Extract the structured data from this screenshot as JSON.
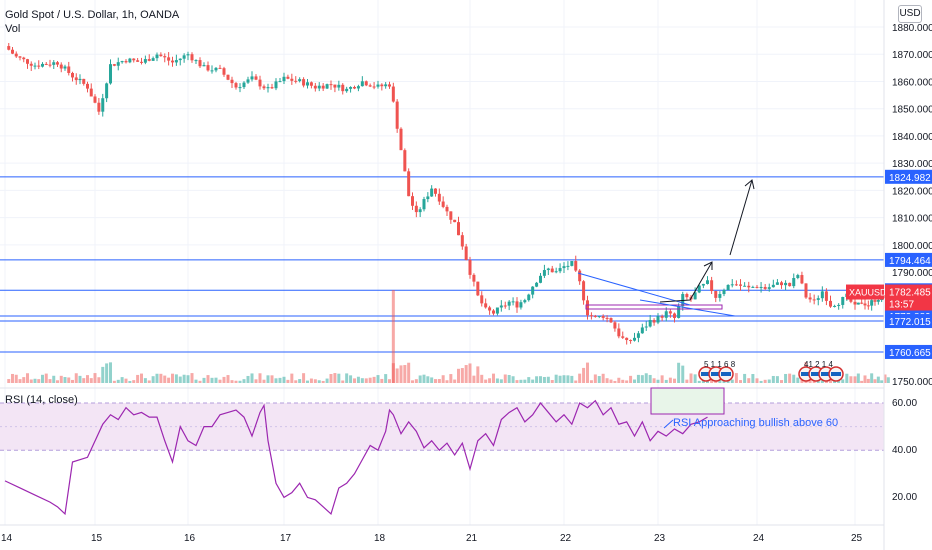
{
  "header": {
    "title": "Gold Spot / U.S. Dollar, 1h, OANDA",
    "volume_label": "Vol",
    "currency_button": "USD"
  },
  "colors": {
    "up": "#26a69a",
    "down": "#ef5350",
    "hline": "#2962ff",
    "rsi_line": "#9c27b0",
    "rsi_band": "#f3e5f5",
    "label_bg": "#2962ff",
    "price_bg": "#f23645",
    "grid": "#f0f3fa"
  },
  "price_axis": {
    "ticks": [
      "1880.000",
      "1870.000",
      "1860.000",
      "1850.000",
      "1840.000",
      "1830.000",
      "1820.000",
      "1810.000",
      "1800.000",
      "1790.000",
      "1750.000"
    ]
  },
  "price_labels": [
    {
      "name": "level-1824",
      "text": "1824.982",
      "value": 1824.982
    },
    {
      "name": "level-1794",
      "text": "1794.464",
      "value": 1794.464
    },
    {
      "name": "level-1783",
      "text": "1783.308",
      "value": 1783.308
    },
    {
      "name": "level-1773",
      "text": "1773.889",
      "value": 1773.889
    },
    {
      "name": "level-1772",
      "text": "1772.015",
      "value": 1772.015
    },
    {
      "name": "level-1760",
      "text": "1760.665",
      "value": 1760.665
    }
  ],
  "current_price": {
    "symbol": "XAUUSD",
    "price": "1782.485",
    "countdown": "13:57",
    "value": 1782.485
  },
  "time_axis": {
    "ticks": [
      "14",
      "15",
      "16",
      "17",
      "18",
      "21",
      "22",
      "23",
      "24",
      "25"
    ]
  },
  "rsi": {
    "title": "RSI (14, close)",
    "ticks": [
      "60.00",
      "40.00",
      "20.00"
    ],
    "annotation": "RSI Approaching bullish above 60"
  },
  "events": {
    "group1": "5 1 1 6 8",
    "group2": "41 2 1 4"
  },
  "chart_data": {
    "type": "candlestick",
    "title": "Gold Spot / U.S. Dollar, 1h, OANDA",
    "ylim": [
      1750,
      1885
    ],
    "x_days": [
      "14",
      "15",
      "16",
      "17",
      "18",
      "21",
      "22",
      "23",
      "24",
      "25"
    ],
    "close_path": [
      [
        0,
        1873
      ],
      [
        3,
        1869
      ],
      [
        8,
        1866
      ],
      [
        14,
        1867
      ],
      [
        18,
        1862
      ],
      [
        22,
        1858
      ],
      [
        25,
        1849
      ],
      [
        28,
        1866
      ],
      [
        32,
        1868
      ],
      [
        36,
        1867
      ],
      [
        40,
        1870
      ],
      [
        44,
        1867
      ],
      [
        48,
        1870
      ],
      [
        52,
        1865
      ],
      [
        56,
        1864
      ],
      [
        60,
        1858
      ],
      [
        64,
        1861
      ],
      [
        68,
        1857
      ],
      [
        72,
        1861
      ],
      [
        76,
        1860
      ],
      [
        80,
        1858
      ],
      [
        84,
        1859
      ],
      [
        88,
        1857
      ],
      [
        92,
        1860
      ],
      [
        96,
        1858
      ],
      [
        99,
        1859
      ],
      [
        100,
        1852
      ],
      [
        102,
        1835
      ],
      [
        104,
        1818
      ],
      [
        106,
        1811
      ],
      [
        108,
        1816
      ],
      [
        110,
        1821
      ],
      [
        112,
        1817
      ],
      [
        114,
        1812
      ],
      [
        116,
        1808
      ],
      [
        118,
        1800
      ],
      [
        120,
        1790
      ],
      [
        122,
        1781
      ],
      [
        124,
        1776
      ],
      [
        126,
        1775
      ],
      [
        128,
        1777
      ],
      [
        130,
        1779
      ],
      [
        132,
        1778
      ],
      [
        134,
        1780
      ],
      [
        136,
        1785
      ],
      [
        138,
        1789
      ],
      [
        140,
        1791
      ],
      [
        142,
        1790
      ],
      [
        144,
        1792
      ],
      [
        146,
        1793
      ],
      [
        148,
        1786
      ],
      [
        150,
        1775
      ],
      [
        152,
        1773
      ],
      [
        154,
        1774
      ],
      [
        156,
        1772
      ],
      [
        158,
        1767
      ],
      [
        160,
        1764
      ],
      [
        162,
        1766
      ],
      [
        164,
        1769
      ],
      [
        166,
        1772
      ],
      [
        168,
        1773
      ],
      [
        170,
        1775
      ],
      [
        172,
        1773
      ],
      [
        174,
        1781
      ],
      [
        176,
        1780
      ],
      [
        178,
        1784
      ],
      [
        180,
        1786
      ],
      [
        182,
        1781
      ],
      [
        184,
        1784
      ],
      [
        186,
        1786
      ],
      [
        188,
        1785
      ],
      [
        190,
        1784
      ],
      [
        192,
        1785
      ],
      [
        194,
        1784
      ],
      [
        196,
        1785
      ],
      [
        198,
        1786
      ],
      [
        200,
        1785
      ],
      [
        202,
        1789
      ],
      [
        204,
        1781
      ],
      [
        206,
        1779
      ],
      [
        208,
        1783
      ],
      [
        210,
        1778
      ],
      [
        212,
        1779
      ],
      [
        214,
        1781
      ],
      [
        216,
        1777
      ],
      [
        218,
        1779
      ],
      [
        220,
        1778
      ],
      [
        222,
        1780
      ],
      [
        224,
        1781
      ],
      [
        226,
        1782.485
      ]
    ],
    "horizontal_levels": [
      1824.982,
      1794.464,
      1783.308,
      1773.889,
      1772.015,
      1760.665
    ],
    "rsi_levels": [
      60,
      40
    ],
    "rsi_ylim": [
      0,
      75
    ],
    "rsi_path": [
      [
        0,
        27
      ],
      [
        4,
        24
      ],
      [
        8,
        21
      ],
      [
        12,
        18
      ],
      [
        14,
        16
      ],
      [
        16,
        13
      ],
      [
        18,
        35
      ],
      [
        22,
        37
      ],
      [
        26,
        51
      ],
      [
        28,
        55
      ],
      [
        30,
        53
      ],
      [
        32,
        58
      ],
      [
        34,
        55
      ],
      [
        36,
        56
      ],
      [
        38,
        54
      ],
      [
        40,
        54
      ],
      [
        42,
        44
      ],
      [
        44,
        35
      ],
      [
        46,
        50
      ],
      [
        48,
        44
      ],
      [
        50,
        42
      ],
      [
        52,
        50
      ],
      [
        54,
        50
      ],
      [
        56,
        55
      ],
      [
        58,
        56
      ],
      [
        60,
        57
      ],
      [
        62,
        54
      ],
      [
        64,
        46
      ],
      [
        66,
        56
      ],
      [
        67,
        59
      ],
      [
        68,
        44
      ],
      [
        70,
        26
      ],
      [
        72,
        20
      ],
      [
        74,
        22
      ],
      [
        76,
        26
      ],
      [
        78,
        20
      ],
      [
        80,
        19
      ],
      [
        82,
        16
      ],
      [
        84,
        13
      ],
      [
        86,
        24
      ],
      [
        88,
        26
      ],
      [
        90,
        30
      ],
      [
        92,
        36
      ],
      [
        94,
        42
      ],
      [
        96,
        40
      ],
      [
        98,
        48
      ],
      [
        99,
        57
      ],
      [
        100,
        55
      ],
      [
        102,
        47
      ],
      [
        104,
        52
      ],
      [
        106,
        48
      ],
      [
        108,
        41
      ],
      [
        110,
        44
      ],
      [
        112,
        40
      ],
      [
        114,
        43
      ],
      [
        116,
        38
      ],
      [
        118,
        43
      ],
      [
        120,
        32
      ],
      [
        122,
        44
      ],
      [
        124,
        47
      ],
      [
        126,
        42
      ],
      [
        128,
        53
      ],
      [
        130,
        56
      ],
      [
        132,
        58
      ],
      [
        134,
        52
      ],
      [
        136,
        55
      ],
      [
        138,
        60
      ],
      [
        140,
        56
      ],
      [
        142,
        52
      ],
      [
        144,
        55
      ],
      [
        146,
        51
      ],
      [
        148,
        60
      ],
      [
        150,
        58
      ],
      [
        152,
        61
      ],
      [
        154,
        55
      ],
      [
        156,
        58
      ],
      [
        158,
        51
      ],
      [
        160,
        52
      ],
      [
        162,
        46
      ],
      [
        164,
        52
      ],
      [
        166,
        44
      ],
      [
        168,
        48
      ],
      [
        170,
        46
      ],
      [
        172,
        49
      ],
      [
        174,
        47
      ],
      [
        176,
        51
      ],
      [
        178,
        52
      ],
      [
        180,
        54
      ]
    ],
    "annotations": [
      "RSI Approaching bullish above 60"
    ]
  }
}
